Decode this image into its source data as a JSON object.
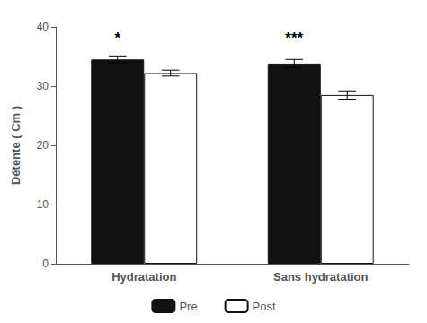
{
  "chart_data": {
    "type": "bar",
    "categories": [
      "Hydratation",
      "Sans hydratation"
    ],
    "series": [
      {
        "name": "Pre",
        "color": "#111111",
        "values": [
          34.5,
          33.8
        ],
        "errors": [
          0.6,
          0.7
        ]
      },
      {
        "name": "Post",
        "color": "#ffffff",
        "values": [
          32.2,
          28.5
        ],
        "errors": [
          0.5,
          0.7
        ]
      }
    ],
    "ylabel": "Détente ( Cm )",
    "ylim": [
      0,
      40
    ],
    "yticks": [
      0,
      10,
      20,
      30,
      40
    ],
    "annotations": [
      {
        "text": "*",
        "category": "Hydratation",
        "series": "Pre",
        "y": 36.8
      },
      {
        "text": "***",
        "category": "Sans hydratation",
        "series": "Pre",
        "y": 36.8
      }
    ],
    "grid": false,
    "legend": "bottom"
  }
}
